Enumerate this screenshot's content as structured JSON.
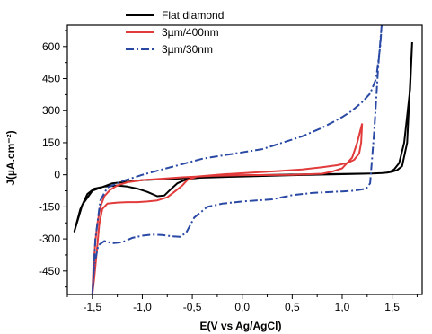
{
  "chart_data": {
    "type": "line",
    "xlabel": "E(V vs Ag/AgCl)",
    "ylabel": "J(µA.cm⁻²)",
    "xlim": [
      -1.75,
      1.8
    ],
    "ylim": [
      -560,
      700
    ],
    "x_ticks": [
      "-1,5",
      "-1,0",
      "-0,5",
      "0,0",
      "0,5",
      "1,0",
      "1,5"
    ],
    "x_tick_values": [
      -1.5,
      -1.0,
      -0.5,
      0.0,
      0.5,
      1.0,
      1.5
    ],
    "y_ticks": [
      "600",
      "450",
      "300",
      "150",
      "0",
      "-150",
      "-300",
      "-450"
    ],
    "y_tick_values": [
      600,
      450,
      300,
      150,
      0,
      -150,
      -300,
      -450
    ],
    "legend_position": "top-center",
    "series": [
      {
        "name": "Flat diamond",
        "color": "#000000",
        "dash": "solid",
        "x": [
          1.7,
          1.68,
          1.62,
          1.57,
          1.52,
          1.48,
          1.45,
          1.4,
          1.3,
          1.0,
          0.5,
          0.0,
          -0.3,
          -0.55,
          -0.65,
          -0.72,
          -0.78,
          -0.85,
          -0.95,
          -1.05,
          -1.15,
          -1.25,
          -1.38,
          -1.48,
          -1.55,
          -1.62,
          -1.68,
          -1.6,
          -1.5,
          -1.3,
          -1.0,
          -0.5,
          0.0,
          0.5,
          1.0,
          1.2,
          1.3,
          1.4,
          1.45,
          1.5,
          1.55,
          1.6,
          1.65,
          1.7
        ],
        "values": [
          620,
          400,
          150,
          55,
          25,
          15,
          10,
          8,
          6,
          4,
          1,
          -3,
          -8,
          -20,
          -40,
          -70,
          -97,
          -100,
          -80,
          -65,
          -55,
          -50,
          -55,
          -65,
          -90,
          -160,
          -265,
          -140,
          -75,
          -40,
          -25,
          -15,
          -8,
          -2,
          3,
          5,
          6,
          8,
          10,
          14,
          22,
          40,
          150,
          620
        ]
      },
      {
        "name": "3µm/400nm",
        "color": "#e23b3b",
        "dash": "solid",
        "x": [
          1.2,
          1.19,
          1.17,
          1.12,
          1.05,
          0.95,
          0.8,
          0.6,
          0.35,
          0.1,
          -0.2,
          -0.45,
          -0.55,
          -0.6,
          -0.68,
          -0.75,
          -0.85,
          -0.95,
          -1.05,
          -1.15,
          -1.25,
          -1.35,
          -1.4,
          -1.43,
          -1.46,
          -1.48,
          -1.5,
          -1.49,
          -1.47,
          -1.45,
          -1.42,
          -1.38,
          -1.32,
          -1.25,
          -1.15,
          -1.0,
          -0.6,
          -0.3,
          0.0,
          0.5,
          0.8,
          0.9,
          1.0,
          1.1,
          1.15,
          1.2
        ],
        "values": [
          240,
          150,
          100,
          70,
          55,
          45,
          35,
          25,
          17,
          10,
          2,
          -8,
          -25,
          -50,
          -80,
          -105,
          -120,
          -125,
          -128,
          -128,
          -130,
          -135,
          -160,
          -230,
          -380,
          -480,
          -560,
          -440,
          -310,
          -230,
          -150,
          -100,
          -70,
          -50,
          -35,
          -25,
          -12,
          -5,
          -2,
          0,
          5,
          15,
          30,
          80,
          150,
          240
        ]
      },
      {
        "name": "3µm/30nm",
        "color": "#2a49a4",
        "dash": "dashdot",
        "x": [
          1.4,
          1.38,
          1.34,
          1.28,
          1.2,
          1.1,
          1.0,
          0.8,
          0.6,
          0.4,
          0.2,
          0.0,
          -0.2,
          -0.4,
          -0.6,
          -0.8,
          -1.0,
          -1.2,
          -1.35,
          -1.42,
          -1.47,
          -1.5,
          -1.48,
          -1.44,
          -1.38,
          -1.3,
          -1.2,
          -1.1,
          -1.0,
          -0.9,
          -0.8,
          -0.7,
          -0.62,
          -0.56,
          -0.48,
          -0.35,
          -0.2,
          0.0,
          0.3,
          0.5,
          0.7,
          0.9,
          1.0,
          1.1,
          1.15,
          1.2,
          1.24,
          1.28,
          1.32,
          1.36,
          1.4
        ],
        "values": [
          730,
          600,
          450,
          380,
          340,
          300,
          270,
          220,
          180,
          150,
          120,
          105,
          90,
          75,
          50,
          25,
          0,
          -30,
          -60,
          -120,
          -300,
          -560,
          -420,
          -330,
          -310,
          -320,
          -315,
          -295,
          -285,
          -280,
          -282,
          -288,
          -290,
          -270,
          -200,
          -150,
          -135,
          -125,
          -115,
          -95,
          -85,
          -80,
          -78,
          -75,
          -72,
          -68,
          -65,
          -40,
          200,
          500,
          730
        ]
      }
    ]
  }
}
